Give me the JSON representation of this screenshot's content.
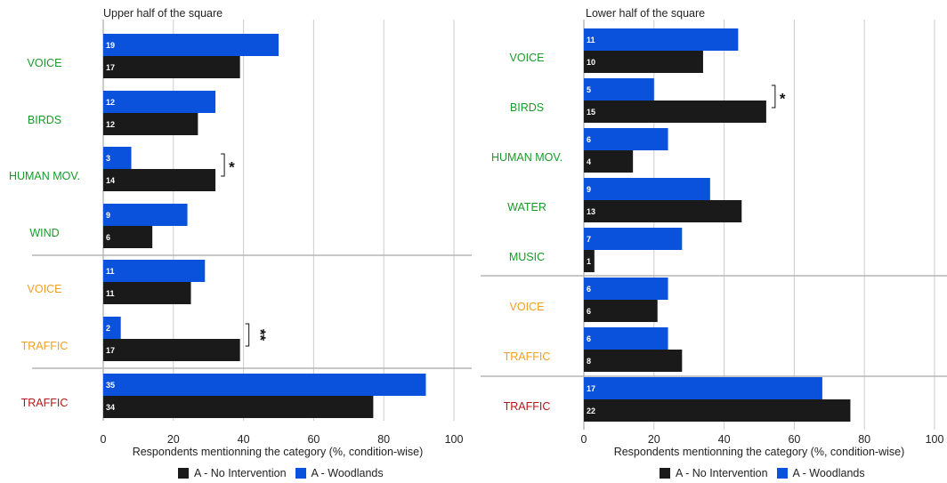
{
  "colors": {
    "no_intervention": "#1a1a1a",
    "woodlands": "#0a52dc",
    "group_green": "#1a9a2a",
    "group_orange": "#f0a020",
    "group_red": "#b01818",
    "grid": "#cccccc",
    "separator": "#b5b5b5"
  },
  "chart_data": [
    {
      "type": "bar",
      "orientation": "horizontal",
      "title": "Upper half of the square",
      "xlabel": "Respondents mentionning the category (%, condition-wise)",
      "xlim": [
        0,
        100
      ],
      "xticks": [
        "0",
        "20",
        "40",
        "60",
        "80",
        "100"
      ],
      "grid": true,
      "legend_placement": "bottom",
      "series": [
        {
          "name": "A - Woodlands",
          "color": "#0a52dc"
        },
        {
          "name": "A - No Intervention",
          "color": "#1a1a1a"
        }
      ],
      "categories": [
        {
          "label": "VOICE",
          "group": "green",
          "woodlands": 50,
          "woodlands_label": "19",
          "no_intervention": 39,
          "no_intervention_label": "17",
          "sig": ""
        },
        {
          "label": "BIRDS",
          "group": "green",
          "woodlands": 32,
          "woodlands_label": "12",
          "no_intervention": 27,
          "no_intervention_label": "12",
          "sig": ""
        },
        {
          "label": "HUMAN MOV.",
          "group": "green",
          "woodlands": 8,
          "woodlands_label": "3",
          "no_intervention": 32,
          "no_intervention_label": "14",
          "sig": "*"
        },
        {
          "label": "WIND",
          "group": "green",
          "woodlands": 24,
          "woodlands_label": "9",
          "no_intervention": 14,
          "no_intervention_label": "6",
          "sig": ""
        },
        {
          "label": "VOICE",
          "group": "orange",
          "woodlands": 29,
          "woodlands_label": "11",
          "no_intervention": 25,
          "no_intervention_label": "11",
          "sig": ""
        },
        {
          "label": "TRAFFIC",
          "group": "orange",
          "woodlands": 5,
          "woodlands_label": "2",
          "no_intervention": 39,
          "no_intervention_label": "17",
          "sig": "**"
        },
        {
          "label": "TRAFFIC",
          "group": "red",
          "woodlands": 92,
          "woodlands_label": "35",
          "no_intervention": 77,
          "no_intervention_label": "34",
          "sig": ""
        }
      ]
    },
    {
      "type": "bar",
      "orientation": "horizontal",
      "title": "Lower half of the square",
      "xlabel": "Respondents mentionning the category (%, condition-wise)",
      "xlim": [
        0,
        100
      ],
      "xticks": [
        "0",
        "20",
        "40",
        "60",
        "80",
        "100"
      ],
      "grid": true,
      "legend_placement": "bottom",
      "series": [
        {
          "name": "A - Woodlands",
          "color": "#0a52dc"
        },
        {
          "name": "A - No Intervention",
          "color": "#1a1a1a"
        }
      ],
      "categories": [
        {
          "label": "VOICE",
          "group": "green",
          "woodlands": 44,
          "woodlands_label": "11",
          "no_intervention": 34,
          "no_intervention_label": "10",
          "sig": ""
        },
        {
          "label": "BIRDS",
          "group": "green",
          "woodlands": 20,
          "woodlands_label": "5",
          "no_intervention": 52,
          "no_intervention_label": "15",
          "sig": "*"
        },
        {
          "label": "HUMAN MOV.",
          "group": "green",
          "woodlands": 24,
          "woodlands_label": "6",
          "no_intervention": 14,
          "no_intervention_label": "4",
          "sig": ""
        },
        {
          "label": "WATER",
          "group": "green",
          "woodlands": 36,
          "woodlands_label": "9",
          "no_intervention": 45,
          "no_intervention_label": "13",
          "sig": ""
        },
        {
          "label": "MUSIC",
          "group": "green",
          "woodlands": 28,
          "woodlands_label": "7",
          "no_intervention": 3,
          "no_intervention_label": "1",
          "sig": ""
        },
        {
          "label": "VOICE",
          "group": "orange",
          "woodlands": 24,
          "woodlands_label": "6",
          "no_intervention": 21,
          "no_intervention_label": "6",
          "sig": ""
        },
        {
          "label": "TRAFFIC",
          "group": "orange",
          "woodlands": 24,
          "woodlands_label": "6",
          "no_intervention": 28,
          "no_intervention_label": "8",
          "sig": ""
        },
        {
          "label": "TRAFFIC",
          "group": "red",
          "woodlands": 68,
          "woodlands_label": "17",
          "no_intervention": 76,
          "no_intervention_label": "22",
          "sig": ""
        }
      ]
    }
  ],
  "legend": {
    "no_intervention": "A - No Intervention",
    "woodlands": "A - Woodlands"
  }
}
